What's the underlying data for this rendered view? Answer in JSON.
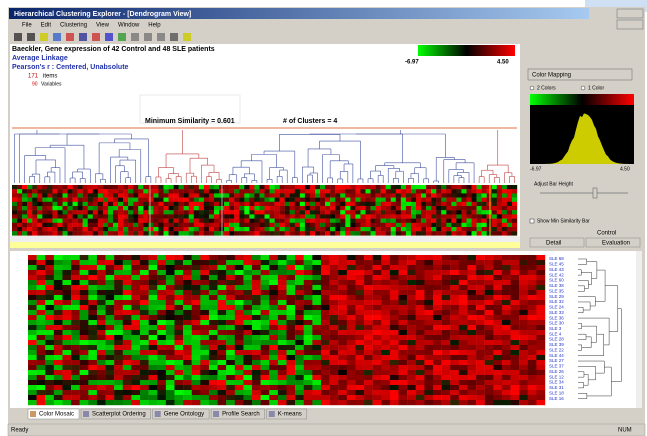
{
  "window": {
    "title": "Hierarchical Clustering Explorer - [Dendrogram View]"
  },
  "menu": [
    "File",
    "Edit",
    "Clustering",
    "View",
    "Window",
    "Help"
  ],
  "info": {
    "dataset": "Baeckler, Gene expression of 42 Control and 48 SLE patients",
    "linkage": "Average Linkage",
    "measure": "Pearson's r : Centered, Unabsolute",
    "items": "171",
    "items_label": "items",
    "variables": "90",
    "variables_label": "Variables"
  },
  "scale": {
    "min": "-6.97",
    "max": "4.50"
  },
  "similarity": "Minimum Similarity = 0.601",
  "clusters": "# of Clusters = 4",
  "panel": {
    "color_mapping": "Color Mapping",
    "two_colors": "2 Colors",
    "one_color": "1 Color",
    "hist_min": "-6.97",
    "hist_max": "4.50",
    "adjust": "Adjust Bar Height",
    "show_min": "Show Min Similarity Bar",
    "control": "Control"
  },
  "tabs_right": [
    "Detail",
    "Evaluation"
  ],
  "row_labels": [
    "SLE 68",
    "SLE 45",
    "SLE 43",
    "SLE 42",
    "SLE 60",
    "SLE 38",
    "SLE 35",
    "SLE 29",
    "SLE 32",
    "SLE 24",
    "SLE 33",
    "SLE 36",
    "SLE 30",
    "SLE 3",
    "SLE 4",
    "SLE 28",
    "SLE 39",
    "SLE 22",
    "SLE 44",
    "SLE 27",
    "SLE 37",
    "SLE 26",
    "SLE 12",
    "SLE 34",
    "SLE 31",
    "SLE 18",
    "SLE 16"
  ],
  "tabs": [
    "Color Mosaic",
    "Scatterplot Ordering",
    "Gene Ontology",
    "Profile Search",
    "K-means"
  ],
  "status": {
    "ready": "Ready",
    "num": "NUM"
  }
}
